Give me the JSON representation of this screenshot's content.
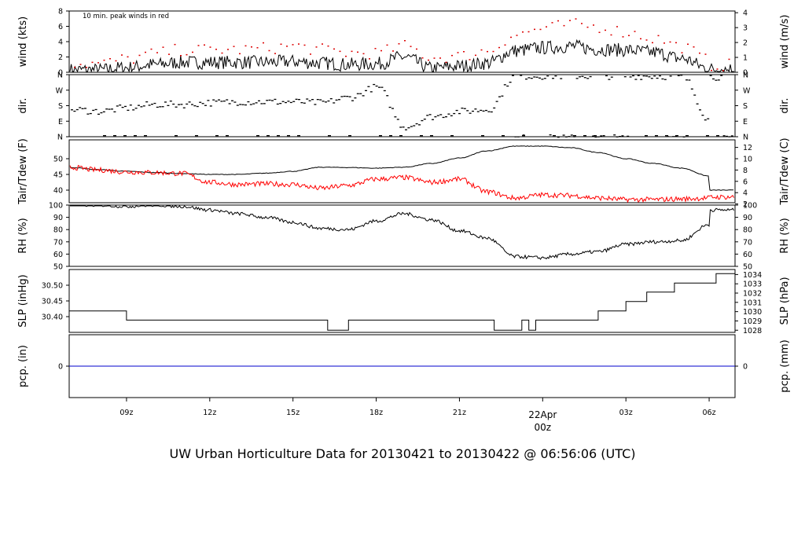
{
  "chart_data": [
    {
      "type": "line",
      "panel": "wind",
      "ylabel_left": "wind (kts)",
      "ylabel_right": "wind (m/s)",
      "annotation": "10 min. peak winds in red",
      "ylim": [
        0,
        8
      ],
      "yticks_left": [
        "0",
        "2",
        "4",
        "6",
        "8"
      ],
      "yticks_right_values": [
        0,
        1,
        2,
        3,
        4
      ],
      "yticks_right": [
        "0",
        "1",
        "2",
        "3",
        "4"
      ],
      "x": [
        "07:00",
        "08:00",
        "09:00",
        "10:00",
        "11:00",
        "12:00",
        "13:00",
        "14:00",
        "15:00",
        "16:00",
        "17:00",
        "18:00",
        "19:00",
        "20:00",
        "21:00",
        "22:00",
        "23:00",
        "00:00",
        "01:00",
        "02:00",
        "03:00",
        "04:00",
        "05:00",
        "06:00",
        "07:00"
      ],
      "series": [
        {
          "color": "#000000",
          "values": [
            0.3,
            0.3,
            0.6,
            1.0,
            1.3,
            1.3,
            1.3,
            1.3,
            1.4,
            1.2,
            1.0,
            1.1,
            2.0,
            0.5,
            0.8,
            1.2,
            2.8,
            3.2,
            3.4,
            3.0,
            2.9,
            2.6,
            1.8,
            0.5,
            0.4
          ]
        },
        {
          "color": "#dd0000",
          "values": [
            1.2,
            1.2,
            1.8,
            2.5,
            3.0,
            3.0,
            3.0,
            3.2,
            3.5,
            3.0,
            2.6,
            2.6,
            3.5,
            2.0,
            2.2,
            2.9,
            5.0,
            5.8,
            6.3,
            6.0,
            5.3,
            4.5,
            3.4,
            1.6,
            1.0
          ]
        }
      ]
    },
    {
      "type": "scatter",
      "panel": "dir.",
      "ylabel_left": "dir.",
      "ylabel_right": "dir.",
      "yticks": [
        "N",
        "E",
        "S",
        "W",
        "N"
      ],
      "ylim_deg": [
        0,
        360
      ],
      "x": [
        "07:00",
        "08:00",
        "09:00",
        "10:00",
        "11:00",
        "12:00",
        "13:00",
        "14:00",
        "15:00",
        "16:00",
        "17:00",
        "18:00",
        "19:00",
        "20:00",
        "21:00",
        "22:00",
        "23:00",
        "00:00",
        "01:00",
        "02:00",
        "03:00",
        "04:00",
        "05:00",
        "06:00",
        "07:00"
      ],
      "values_deg": [
        160,
        150,
        170,
        190,
        190,
        200,
        205,
        205,
        205,
        200,
        230,
        290,
        60,
        120,
        150,
        160,
        355,
        355,
        355,
        355,
        355,
        355,
        350,
        100,
        350
      ]
    },
    {
      "type": "line",
      "panel": "Tair/Tdew",
      "ylabel_left": "Tair/Tdew (F)",
      "ylabel_right": "Tair/Tdew (C)",
      "ylim": [
        36,
        56
      ],
      "yticks_left": [
        "40",
        "45",
        "50"
      ],
      "yticks_right_values": [
        2,
        4,
        6,
        8,
        10,
        12
      ],
      "yticks_right": [
        "2",
        "4",
        "6",
        "8",
        "10",
        "12"
      ],
      "x": [
        "07:00",
        "08:00",
        "09:00",
        "10:00",
        "11:00",
        "12:00",
        "13:00",
        "14:00",
        "15:00",
        "16:00",
        "17:00",
        "18:00",
        "19:00",
        "20:00",
        "21:00",
        "22:00",
        "23:00",
        "00:00",
        "01:00",
        "02:00",
        "03:00",
        "04:00",
        "05:00",
        "06:00",
        "07:00"
      ],
      "series": [
        {
          "color": "#000000",
          "values": [
            47.2,
            46.5,
            46.0,
            45.6,
            45.3,
            45.0,
            45.0,
            45.4,
            46.0,
            47.3,
            47.2,
            47.0,
            47.3,
            48.5,
            50.2,
            52.5,
            54.0,
            54.0,
            53.5,
            52.0,
            50.0,
            48.5,
            47.0,
            44.5,
            40.0
          ]
        },
        {
          "color": "#ff0000",
          "values": [
            47.2,
            46.4,
            45.8,
            45.6,
            45.3,
            42.5,
            41.8,
            42.0,
            41.8,
            40.6,
            41.5,
            43.5,
            44.0,
            42.5,
            43.5,
            39.5,
            37.5,
            38.5,
            38.3,
            37.5,
            37.0,
            37.0,
            37.2,
            37.5,
            37.8
          ]
        }
      ]
    },
    {
      "type": "line",
      "panel": "RH",
      "ylabel_left": "RH (%)",
      "ylabel_right": "RH (%)",
      "ylim": [
        50,
        100
      ],
      "yticks": [
        "50",
        "60",
        "70",
        "80",
        "90",
        "100"
      ],
      "x": [
        "07:00",
        "08:00",
        "09:00",
        "10:00",
        "11:00",
        "12:00",
        "13:00",
        "14:00",
        "15:00",
        "16:00",
        "17:00",
        "18:00",
        "19:00",
        "20:00",
        "21:00",
        "22:00",
        "23:00",
        "00:00",
        "01:00",
        "02:00",
        "03:00",
        "04:00",
        "05:00",
        "06:00",
        "07:00"
      ],
      "series": [
        {
          "color": "#000000",
          "values": [
            100,
            100,
            99,
            100,
            99,
            96,
            93,
            90,
            86,
            81,
            80,
            87,
            93,
            88,
            79,
            73,
            58,
            57,
            60,
            62,
            68,
            70,
            71,
            84,
            96
          ]
        }
      ]
    },
    {
      "type": "line",
      "panel": "SLP",
      "ylabel_left": "SLP (inHg)",
      "ylabel_right": "SLP (hPa)",
      "ylim": [
        30.35,
        30.55
      ],
      "yticks_left": [
        "30.40",
        "30.45",
        "30.50"
      ],
      "yticks_right_values": [
        1028,
        1029,
        1030,
        1031,
        1032,
        1033,
        1034
      ],
      "yticks_right": [
        "1028",
        "1029",
        "1030",
        "1031",
        "1032",
        "1033",
        "1034"
      ],
      "series": [
        {
          "color": "#000000",
          "steps": [
            {
              "from": "07:00",
              "to": "09:00",
              "value": 30.418
            },
            {
              "from": "09:00",
              "to": "16:15",
              "value": 30.389
            },
            {
              "from": "16:15",
              "to": "17:00",
              "value": 30.357
            },
            {
              "from": "17:00",
              "to": "22:15",
              "value": 30.389
            },
            {
              "from": "22:15",
              "to": "23:15",
              "value": 30.357
            },
            {
              "from": "23:15",
              "to": "23:30",
              "value": 30.389
            },
            {
              "from": "23:30",
              "to": "23:45",
              "value": 30.357
            },
            {
              "from": "23:45",
              "to": "02:00",
              "value": 30.389
            },
            {
              "from": "02:00",
              "to": "03:00",
              "value": 30.418
            },
            {
              "from": "03:00",
              "to": "03:45",
              "value": 30.448
            },
            {
              "from": "03:45",
              "to": "04:45",
              "value": 30.478
            },
            {
              "from": "04:45",
              "to": "06:15",
              "value": 30.507
            },
            {
              "from": "06:15",
              "to": "07:00",
              "value": 30.537
            }
          ]
        }
      ]
    },
    {
      "type": "line",
      "panel": "pcp.",
      "ylabel_left": "pcp. (in)",
      "ylabel_right": "pcp. (mm)",
      "yticks_left": [
        "0"
      ],
      "yticks_right": [
        "0"
      ],
      "series": [
        {
          "color": "#0000cc",
          "values": [
            0,
            0
          ]
        }
      ]
    }
  ],
  "xaxis": {
    "ticks": [
      {
        "time": "09:00",
        "label": "09z"
      },
      {
        "time": "12:00",
        "label": "12z"
      },
      {
        "time": "15:00",
        "label": "15z"
      },
      {
        "time": "18:00",
        "label": "18z"
      },
      {
        "time": "21:00",
        "label": "21z"
      },
      {
        "time": "03:00",
        "label": "03z"
      },
      {
        "time": "06:00",
        "label": "06z"
      }
    ],
    "day_mark": {
      "time": "00:00",
      "date": "22Apr",
      "label": "00z",
      "color": "#dd0000"
    },
    "range": [
      "06:56",
      "06:56"
    ]
  },
  "footer": {
    "title": "UW Urban Horticulture Data for 20130421  to  20130422 @ 06:56:06  (UTC)",
    "color": "#0000dd"
  }
}
